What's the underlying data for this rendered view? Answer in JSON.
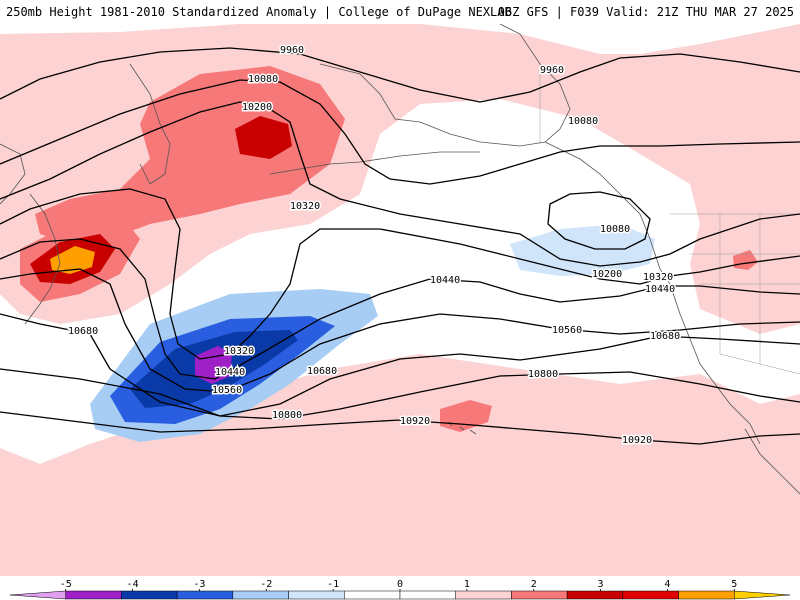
{
  "header": {
    "title_left": "250mb Height 1981-2010 Standardized Anomaly | College of DuPage NEXLAB",
    "title_right": "06Z GFS | F039 Valid: 21Z THU MAR 27 2025"
  },
  "contours": [
    {
      "label": "9960"
    },
    {
      "label": "9960"
    },
    {
      "label": "10080"
    },
    {
      "label": "10080"
    },
    {
      "label": "10080"
    },
    {
      "label": "10200"
    },
    {
      "label": "10200"
    },
    {
      "label": "10320"
    },
    {
      "label": "10320"
    },
    {
      "label": "10320"
    },
    {
      "label": "10440"
    },
    {
      "label": "10440"
    },
    {
      "label": "10440"
    },
    {
      "label": "10560"
    },
    {
      "label": "10560"
    },
    {
      "label": "10680"
    },
    {
      "label": "10680"
    },
    {
      "label": "10680"
    },
    {
      "label": "10800"
    },
    {
      "label": "10800"
    },
    {
      "label": "10920"
    },
    {
      "label": "10920"
    }
  ],
  "colorbar": {
    "ticks": [
      "-5",
      "-4",
      "-3",
      "-2",
      "-1",
      "0",
      "1",
      "2",
      "3",
      "4",
      "5"
    ],
    "colors": [
      "#e0a0f0",
      "#a020c8",
      "#0a3aa8",
      "#2a5ee0",
      "#a8cdf5",
      "#d0e4fa",
      "#ffffff",
      "#ffffff",
      "#fcd2d2",
      "#f67878",
      "#c80000",
      "#e00000",
      "#ff9f00",
      "#ffd000"
    ]
  }
}
